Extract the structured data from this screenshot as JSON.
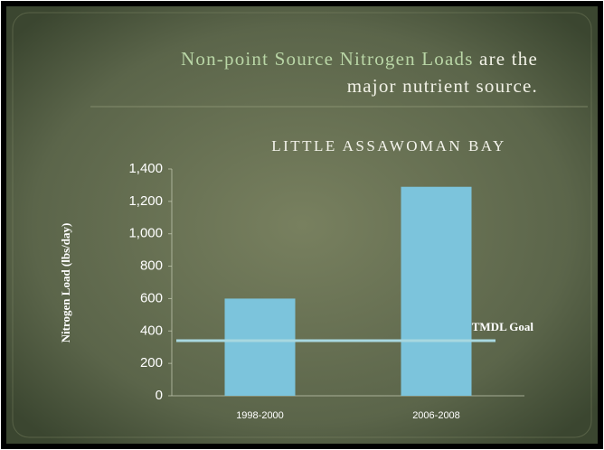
{
  "chart_data": {
    "type": "bar",
    "title_highlight": "Non-point Source Nitrogen Loads",
    "title_rest": "are the major nutrient source.",
    "chart_title": "LITTLE ASSAWOMAN BAY",
    "y_label": "Nitrogen Load (lbs/day)",
    "categories": [
      "1998-2000",
      "2006-2008"
    ],
    "values": [
      600,
      1290
    ],
    "color": "#7cc4dc",
    "ylim": [
      0,
      1400
    ],
    "yticks": [
      0,
      200,
      400,
      600,
      800,
      {
        "value": 1000,
        "label": "1,000"
      },
      {
        "value": 1200,
        "label": "1,200"
      },
      {
        "value": 1400,
        "label": "1,400"
      }
    ],
    "reference_line": {
      "label": "TMDL Goal",
      "value": 340,
      "color": "#a8d8e0"
    }
  }
}
